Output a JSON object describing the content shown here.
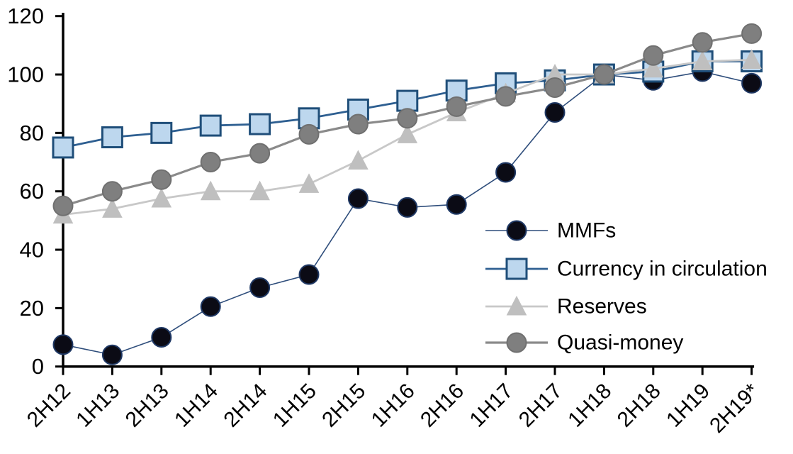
{
  "page": {
    "background_color": "#ffffff"
  },
  "chart_data": {
    "type": "line",
    "title": "",
    "xlabel": "",
    "ylabel": "",
    "categories": [
      "2H12",
      "1H13",
      "2H13",
      "1H14",
      "2H14",
      "1H15",
      "2H15",
      "1H16",
      "2H16",
      "1H17",
      "2H17",
      "1H18",
      "2H18",
      "1H19",
      "2H19*"
    ],
    "series": [
      {
        "name": "MMFs",
        "marker": "circle",
        "marker_fill": "#0b0b15",
        "marker_stroke": "#1f3864",
        "line_color": "#2e4d7b",
        "line_width": 1.6,
        "values": [
          7.5,
          4,
          10,
          20.5,
          27,
          31.5,
          57.5,
          54.5,
          55.5,
          66.5,
          87,
          100,
          98,
          101,
          97
        ]
      },
      {
        "name": "Currency in circulation",
        "marker": "square",
        "marker_fill": "#bdd7ee",
        "marker_stroke": "#1f4e79",
        "line_color": "#2e5f91",
        "line_width": 2.8,
        "values": [
          75,
          78.5,
          80,
          82.5,
          83,
          85,
          88,
          91,
          94.5,
          97,
          98,
          100,
          101,
          104.5,
          104.5
        ]
      },
      {
        "name": "Reserves",
        "marker": "triangle",
        "marker_fill": "#bfbfbf",
        "marker_stroke": "#bfbfbf",
        "line_color": "#c8c8c8",
        "line_width": 2.8,
        "values": [
          52,
          54,
          57.5,
          60,
          60,
          62.5,
          70.5,
          79.5,
          87,
          93.5,
          100,
          100,
          102,
          104.5,
          105
        ]
      },
      {
        "name": "Quasi-money",
        "marker": "circle",
        "marker_fill": "#7f7f7f",
        "marker_stroke": "#707070",
        "line_color": "#8a8a8a",
        "line_width": 3.2,
        "values": [
          55,
          60,
          64,
          70,
          73,
          79.5,
          83,
          85,
          89,
          92.5,
          95.5,
          100,
          106.5,
          111,
          114
        ]
      }
    ],
    "ylim": [
      0,
      120
    ],
    "yticks": [
      0,
      20,
      40,
      60,
      80,
      100,
      120
    ],
    "grid": false,
    "legend_position": "inside-right",
    "axis_color": "#000000",
    "x_tick_label_rotation": -45
  }
}
